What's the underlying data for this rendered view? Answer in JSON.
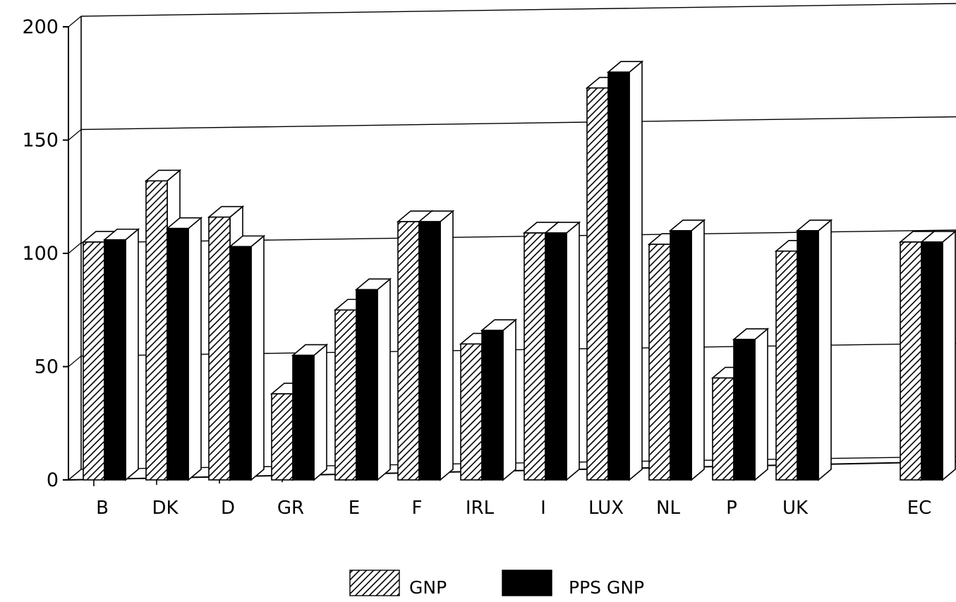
{
  "chart_data": {
    "type": "bar",
    "title": "",
    "xlabel": "",
    "ylabel": "",
    "ylim": [
      0,
      200
    ],
    "yticks": [
      0,
      50,
      100,
      150,
      200
    ],
    "grid": true,
    "legend_position": "bottom",
    "categories": [
      "B",
      "DK",
      "D",
      "GR",
      "E",
      "F",
      "IRL",
      "I",
      "LUX",
      "NL",
      "P",
      "UK",
      "EC"
    ],
    "series": [
      {
        "name": "GNP",
        "values": [
          105,
          132,
          116,
          38,
          75,
          114,
          60,
          109,
          173,
          104,
          45,
          101,
          105
        ]
      },
      {
        "name": "PPS GNP",
        "values": [
          106,
          111,
          103,
          55,
          84,
          114,
          66,
          109,
          180,
          110,
          62,
          110,
          105
        ]
      }
    ]
  },
  "colors": {
    "bar_front": "#000000",
    "bar_side": "#ffffff",
    "line": "#000000"
  }
}
